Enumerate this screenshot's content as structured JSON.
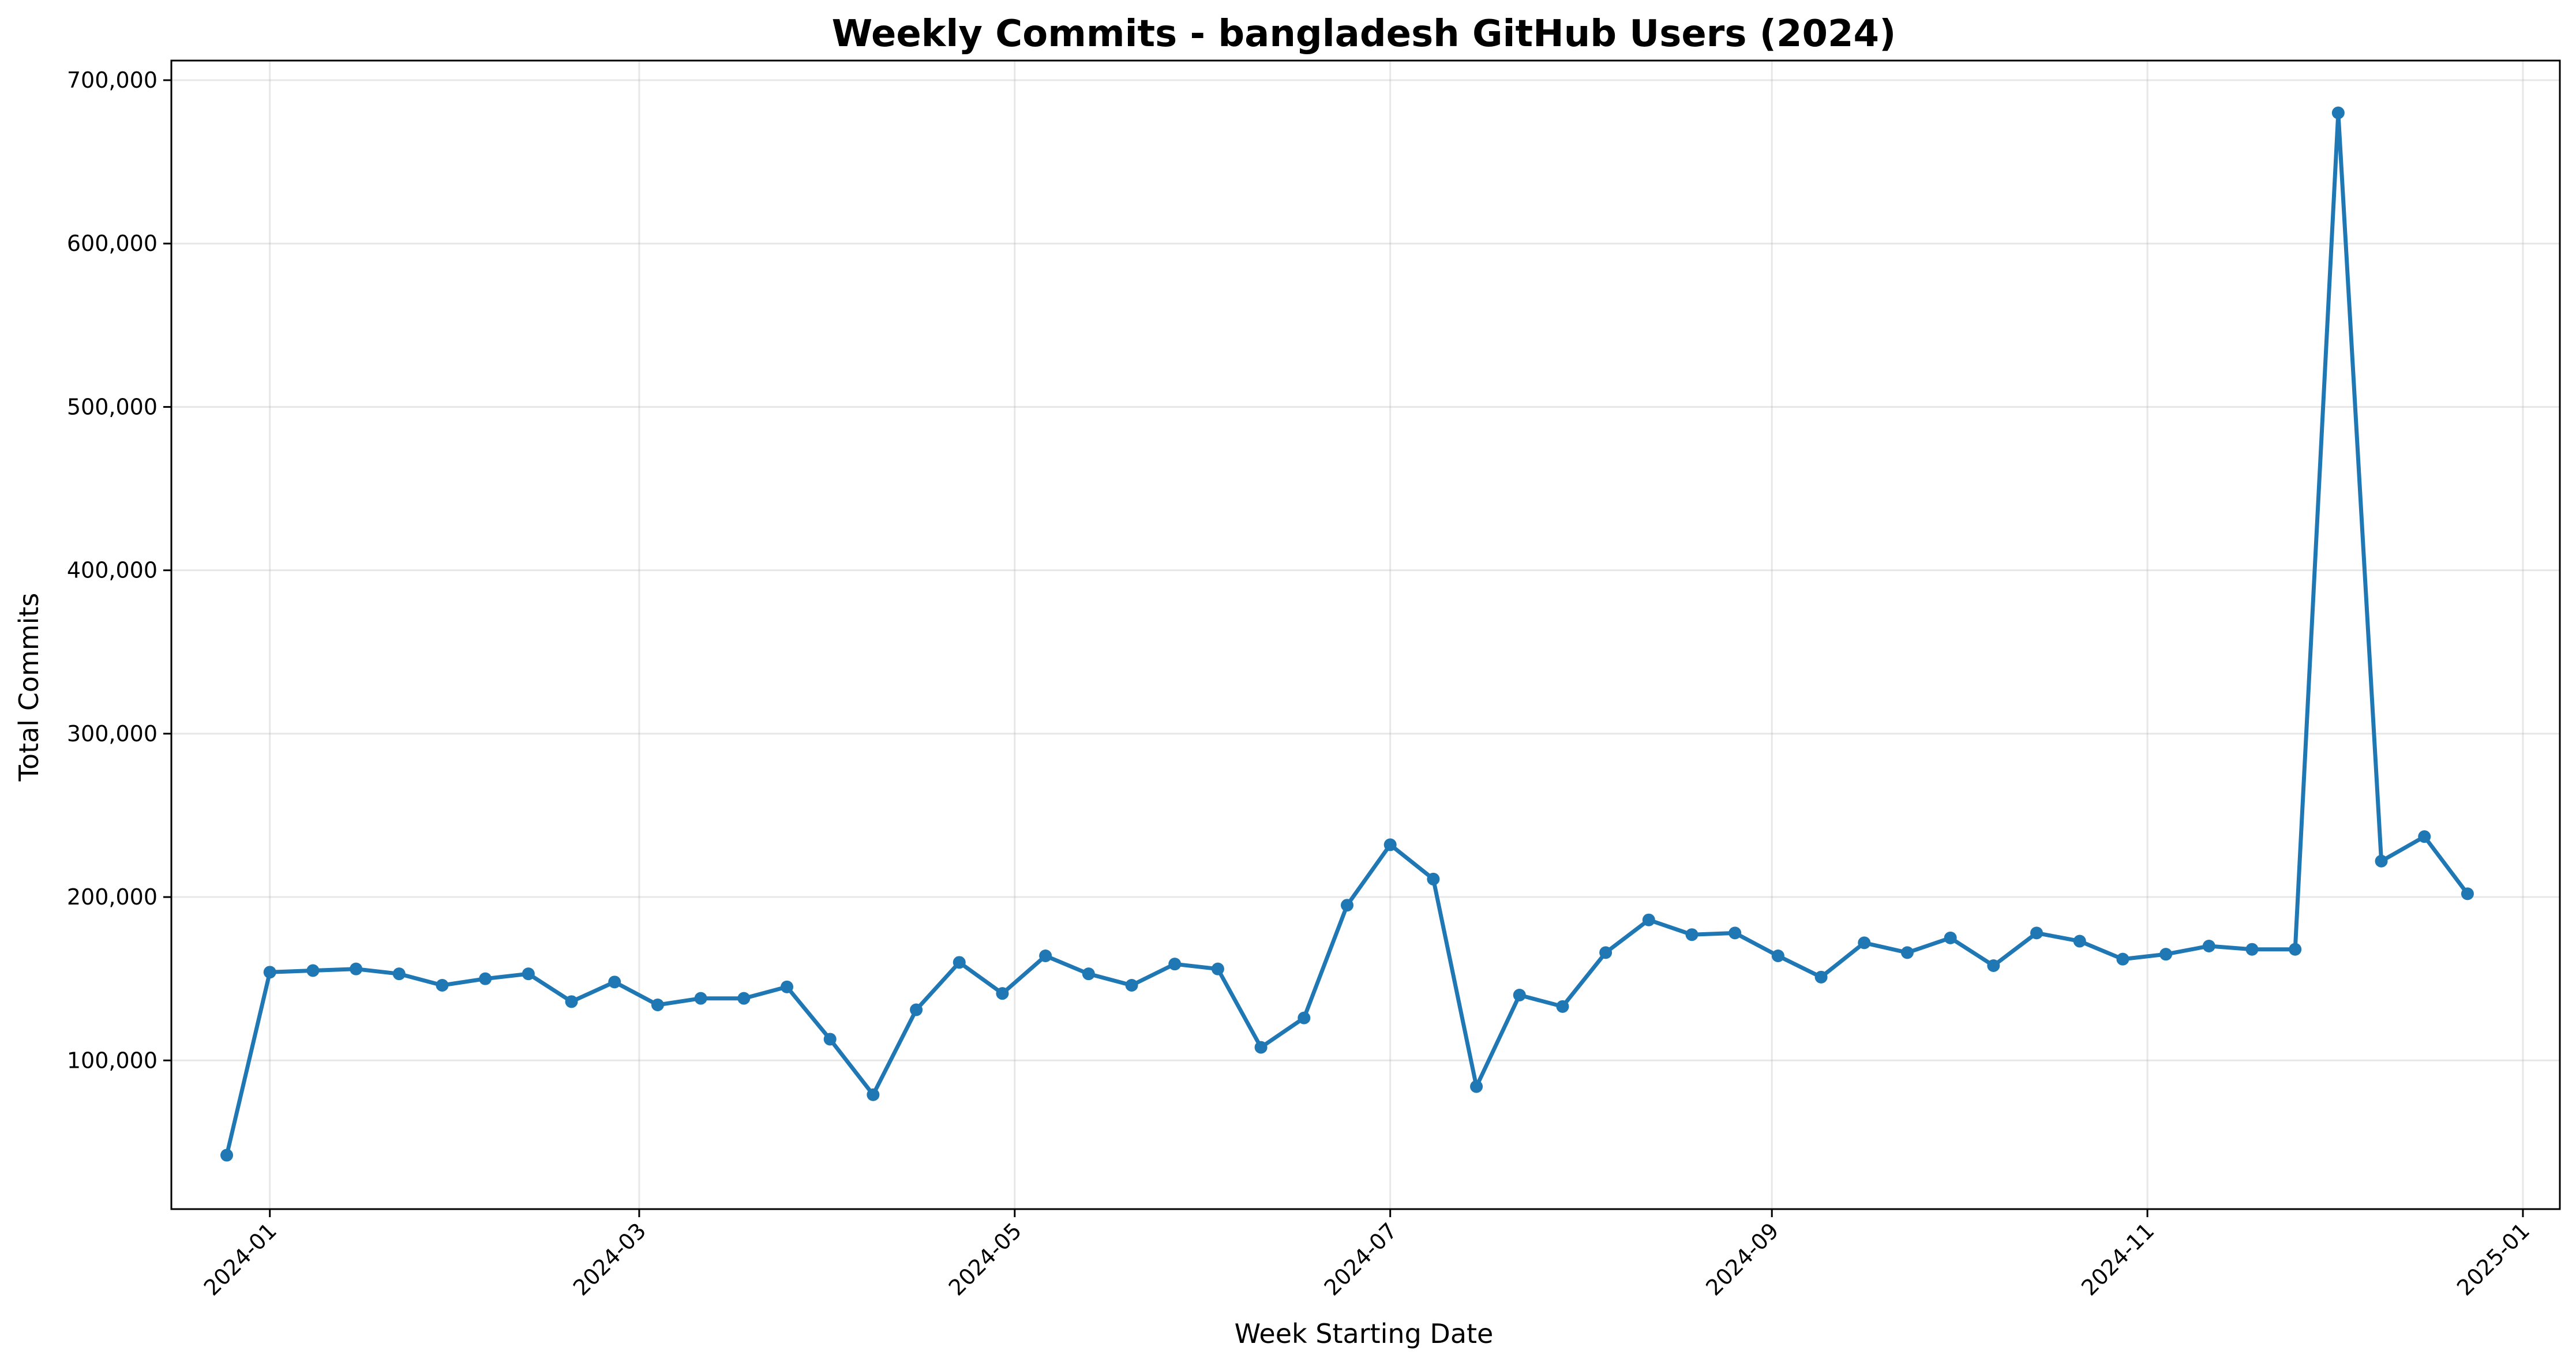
{
  "chart_data": {
    "type": "line",
    "title": "Weekly Commits - bangladesh GitHub Users (2024)",
    "xlabel": "Week Starting Date",
    "ylabel": "Total Commits",
    "color": "#1f77b4",
    "grid": true,
    "x_ticks": [
      "2024-01",
      "2024-03",
      "2024-05",
      "2024-07",
      "2024-09",
      "2024-11",
      "2025-01"
    ],
    "x_range": [
      "2023-12-16",
      "2025-01-07"
    ],
    "y_ticks": [
      100000,
      200000,
      300000,
      400000,
      500000,
      600000,
      700000
    ],
    "y_tick_labels": [
      "100,000",
      "200,000",
      "300,000",
      "400,000",
      "500,000",
      "600,000",
      "700,000"
    ],
    "ylim": [
      9000,
      712000
    ],
    "x": [
      "2023-12-25",
      "2024-01-01",
      "2024-01-08",
      "2024-01-15",
      "2024-01-22",
      "2024-01-29",
      "2024-02-05",
      "2024-02-12",
      "2024-02-19",
      "2024-02-26",
      "2024-03-04",
      "2024-03-11",
      "2024-03-18",
      "2024-03-25",
      "2024-04-01",
      "2024-04-08",
      "2024-04-15",
      "2024-04-22",
      "2024-04-29",
      "2024-05-06",
      "2024-05-13",
      "2024-05-20",
      "2024-05-27",
      "2024-06-03",
      "2024-06-10",
      "2024-06-17",
      "2024-06-24",
      "2024-07-01",
      "2024-07-08",
      "2024-07-15",
      "2024-07-22",
      "2024-07-29",
      "2024-08-05",
      "2024-08-12",
      "2024-08-19",
      "2024-08-26",
      "2024-09-02",
      "2024-09-09",
      "2024-09-16",
      "2024-09-23",
      "2024-09-30",
      "2024-10-07",
      "2024-10-14",
      "2024-10-21",
      "2024-10-28",
      "2024-11-04",
      "2024-11-11",
      "2024-11-18",
      "2024-11-25",
      "2024-12-02",
      "2024-12-09",
      "2024-12-16",
      "2024-12-23"
    ],
    "values": [
      42000,
      154000,
      155000,
      156000,
      153000,
      146000,
      150000,
      153000,
      136000,
      148000,
      134000,
      138000,
      138000,
      145000,
      113000,
      79000,
      131000,
      160000,
      141000,
      164000,
      153000,
      146000,
      159000,
      156000,
      108000,
      126000,
      195000,
      232000,
      211000,
      84000,
      140000,
      133000,
      166000,
      186000,
      177000,
      178000,
      164000,
      151000,
      172000,
      166000,
      175000,
      158000,
      178000,
      173000,
      162000,
      165000,
      170000,
      168000,
      168000,
      680000,
      222000,
      237000,
      202000
    ]
  }
}
